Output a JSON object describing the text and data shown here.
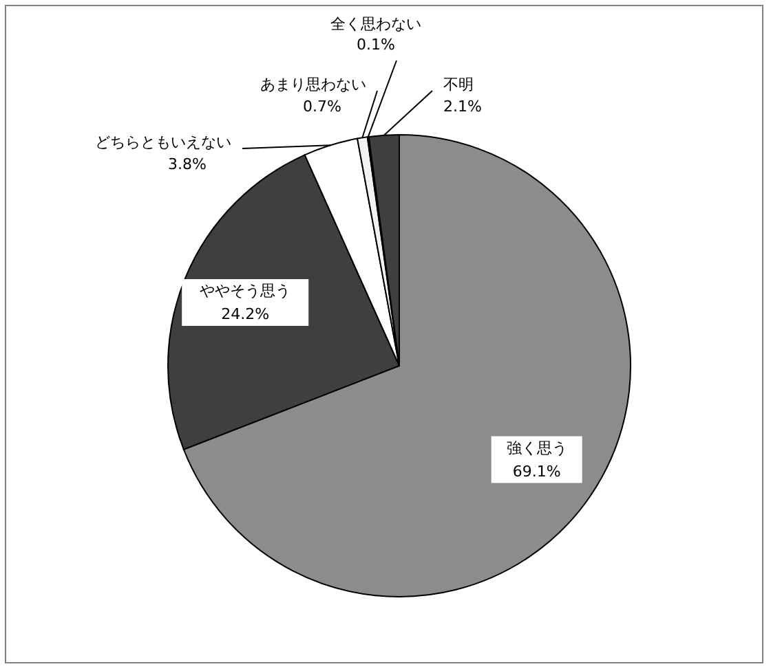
{
  "chart_data": {
    "type": "pie",
    "categories": [
      "強く思う",
      "ややそう思う",
      "どちらともいえない",
      "あまり思わない",
      "全く思わない",
      "不明"
    ],
    "values": [
      69.1,
      24.2,
      3.8,
      0.7,
      0.1,
      2.1
    ],
    "value_labels": [
      "69.1%",
      "24.2%",
      "3.8%",
      "0.7%",
      "0.1%",
      "2.1%"
    ],
    "colors": [
      "#8c8c8c",
      "#3f3f3f",
      "#ffffff",
      "#f2f2f2",
      "#000000",
      "#3f3f3f"
    ]
  }
}
